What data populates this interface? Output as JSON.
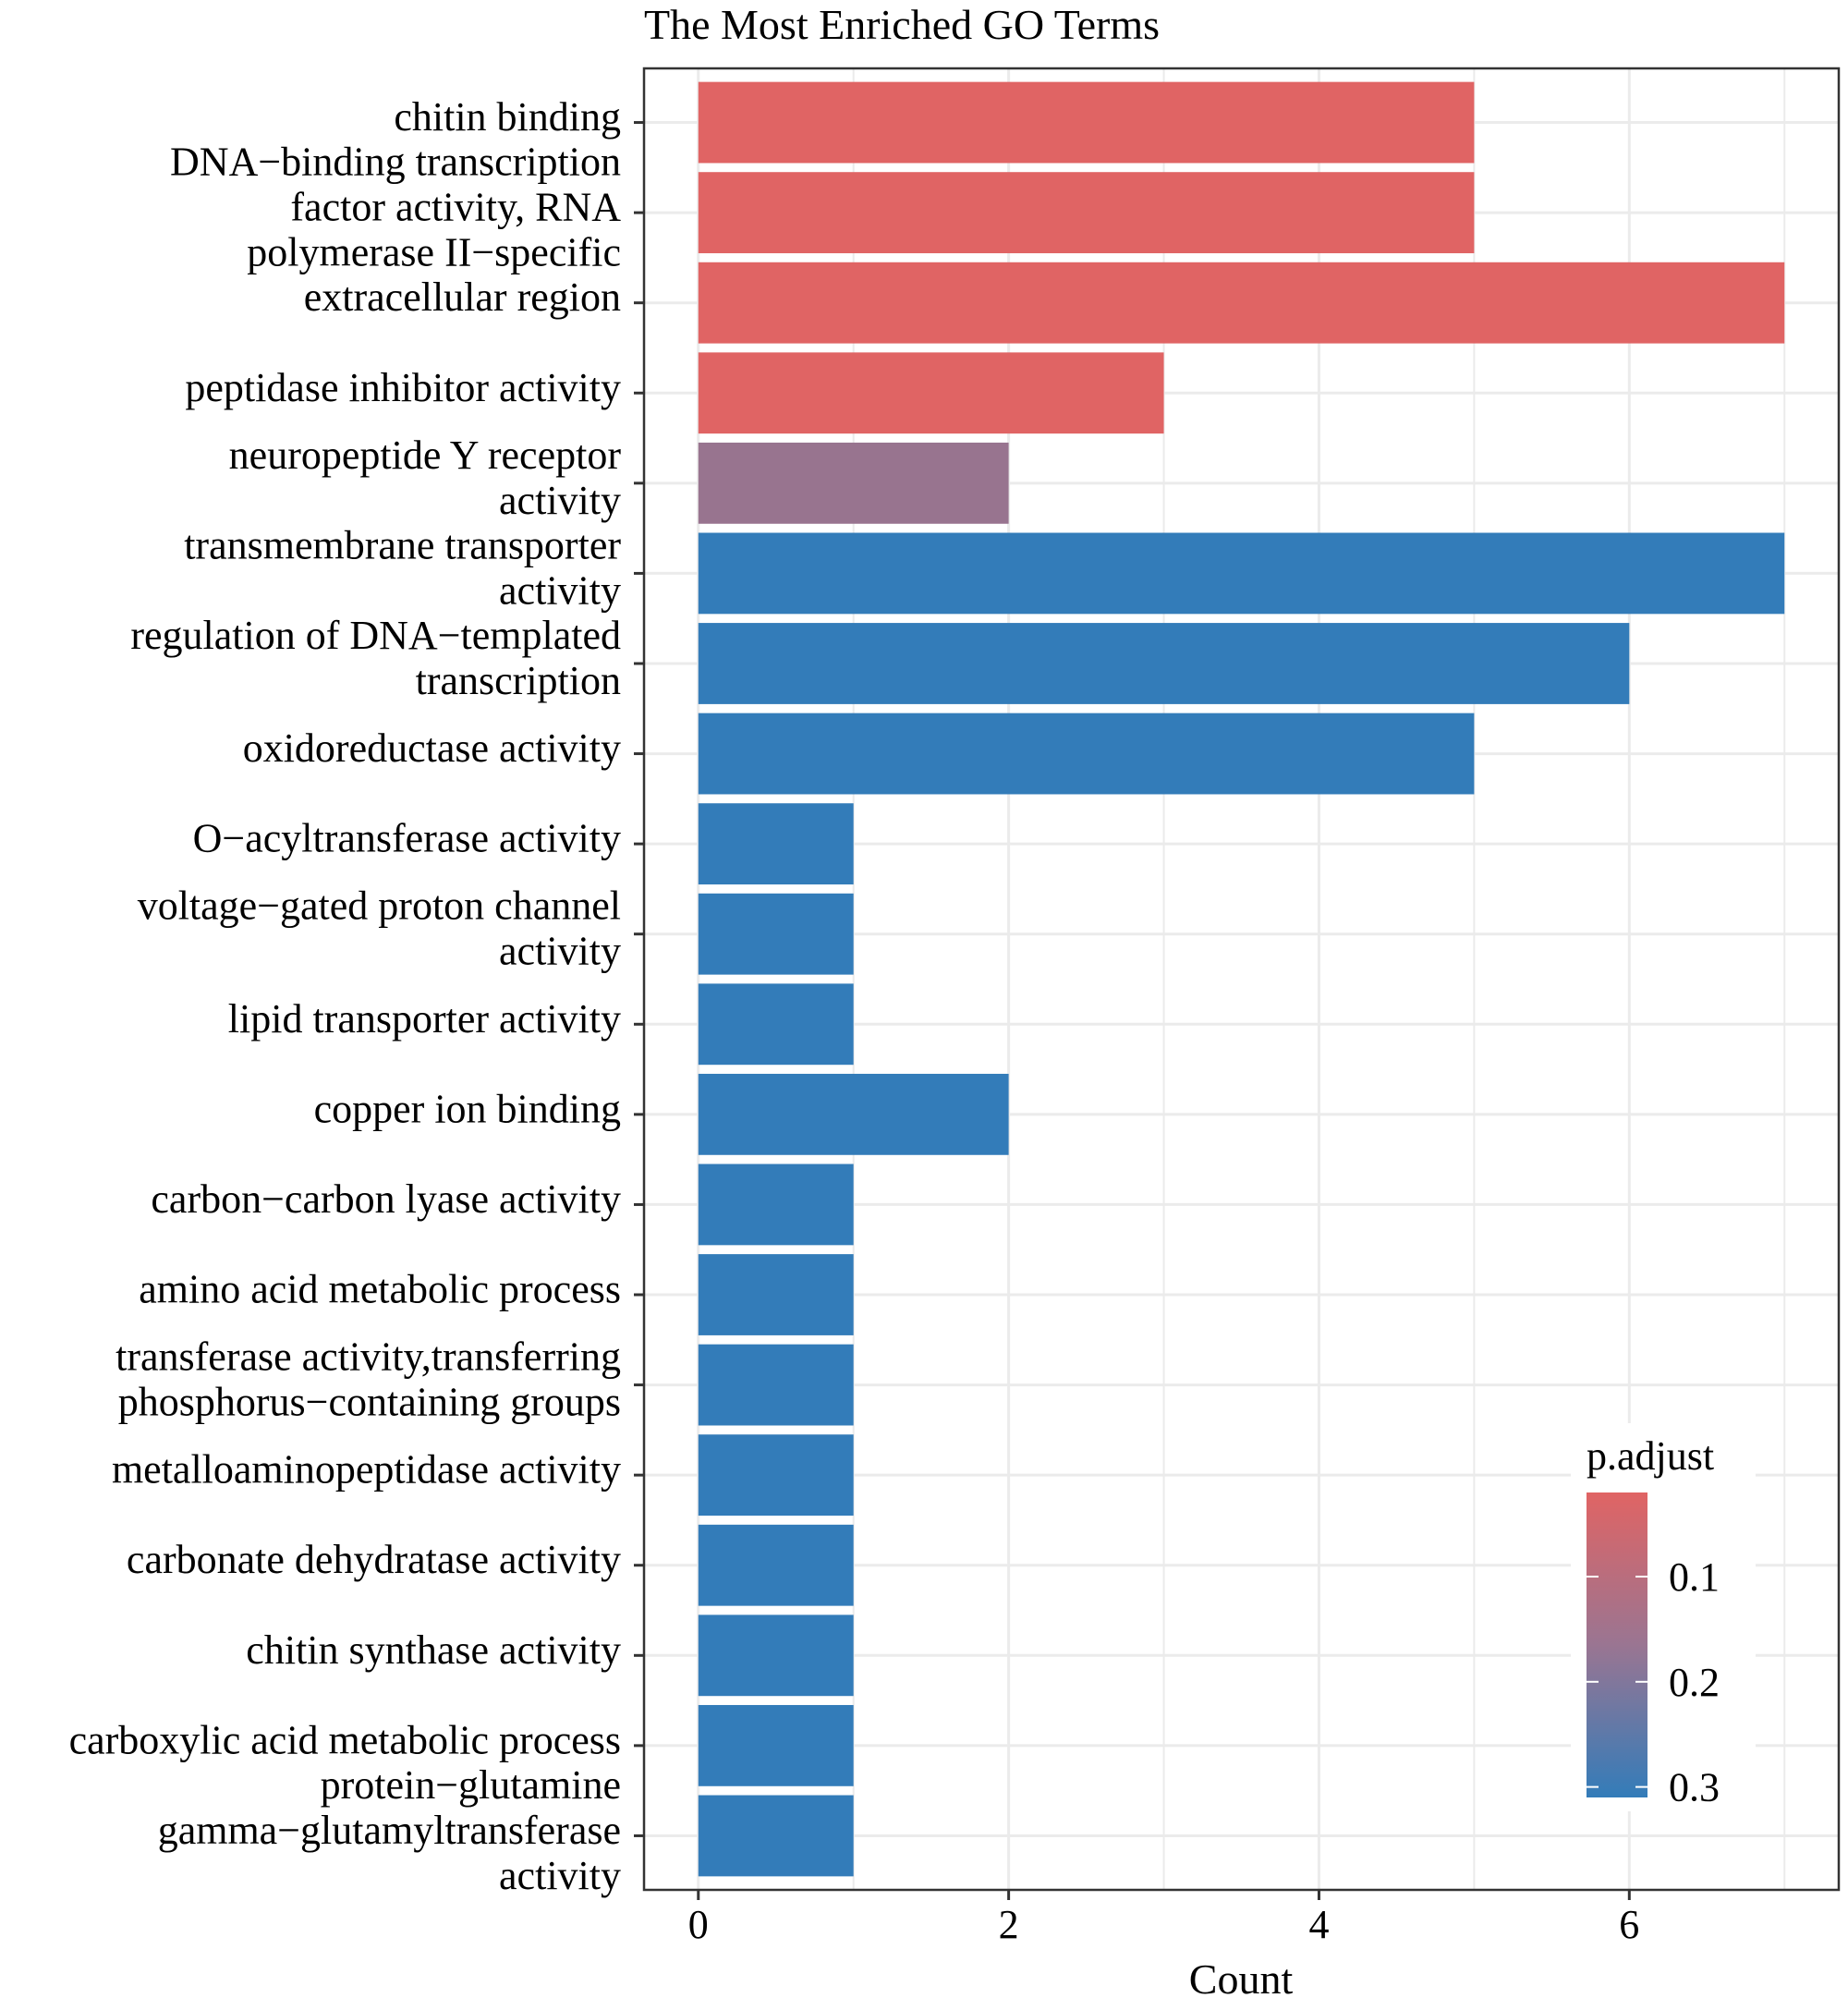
{
  "chart_data": {
    "type": "bar",
    "orientation": "horizontal",
    "title": "The Most Enriched GO Terms",
    "xlabel": "Count",
    "ylabel": "",
    "xlim": [
      -0.35,
      7.35
    ],
    "xticks": [
      0,
      2,
      4,
      6
    ],
    "xtick_labels": [
      "0",
      "2",
      "4",
      "6"
    ],
    "minor_gridlines_x": [
      1,
      3,
      5,
      7
    ],
    "grid": true,
    "categories": [
      {
        "label_lines": [
          "chitin binding"
        ],
        "value": 5,
        "p_adjust_level": "low",
        "color": "#E06464"
      },
      {
        "label_lines": [
          "DNA−binding transcription",
          "factor activity, RNA",
          "polymerase II−specific"
        ],
        "value": 5,
        "p_adjust_level": "low",
        "color": "#E06464"
      },
      {
        "label_lines": [
          "extracellular region"
        ],
        "value": 7,
        "p_adjust_level": "low",
        "color": "#E06464"
      },
      {
        "label_lines": [
          "peptidase inhibitor activity"
        ],
        "value": 3,
        "p_adjust_level": "low",
        "color": "#E06464"
      },
      {
        "label_lines": [
          "neuropeptide Y receptor",
          "activity"
        ],
        "value": 2,
        "p_adjust_level": "mid",
        "color": "#98748F"
      },
      {
        "label_lines": [
          "transmembrane transporter",
          "activity"
        ],
        "value": 7,
        "p_adjust_level": "high",
        "color": "#337CB9"
      },
      {
        "label_lines": [
          "regulation of DNA−templated",
          "transcription"
        ],
        "value": 6,
        "p_adjust_level": "high",
        "color": "#337CB9"
      },
      {
        "label_lines": [
          "oxidoreductase activity"
        ],
        "value": 5,
        "p_adjust_level": "high",
        "color": "#337CB9"
      },
      {
        "label_lines": [
          "O−acyltransferase activity"
        ],
        "value": 1,
        "p_adjust_level": "high",
        "color": "#337CB9"
      },
      {
        "label_lines": [
          "voltage−gated proton channel",
          "activity"
        ],
        "value": 1,
        "p_adjust_level": "high",
        "color": "#337CB9"
      },
      {
        "label_lines": [
          "lipid transporter activity"
        ],
        "value": 1,
        "p_adjust_level": "high",
        "color": "#337CB9"
      },
      {
        "label_lines": [
          "copper ion binding"
        ],
        "value": 2,
        "p_adjust_level": "high",
        "color": "#337CB9"
      },
      {
        "label_lines": [
          "carbon−carbon lyase activity"
        ],
        "value": 1,
        "p_adjust_level": "high",
        "color": "#337CB9"
      },
      {
        "label_lines": [
          "amino acid metabolic process"
        ],
        "value": 1,
        "p_adjust_level": "high",
        "color": "#337CB9"
      },
      {
        "label_lines": [
          "transferase activity,transferring",
          "phosphorus−containing groups"
        ],
        "value": 1,
        "p_adjust_level": "high",
        "color": "#337CB9"
      },
      {
        "label_lines": [
          "metalloaminopeptidase activity"
        ],
        "value": 1,
        "p_adjust_level": "high",
        "color": "#337CB9"
      },
      {
        "label_lines": [
          "carbonate dehydratase activity"
        ],
        "value": 1,
        "p_adjust_level": "high",
        "color": "#337CB9"
      },
      {
        "label_lines": [
          "chitin synthase activity"
        ],
        "value": 1,
        "p_adjust_level": "high",
        "color": "#337CB9"
      },
      {
        "label_lines": [
          "carboxylic acid metabolic process"
        ],
        "value": 1,
        "p_adjust_level": "high",
        "color": "#337CB9"
      },
      {
        "label_lines": [
          "protein−glutamine",
          "gamma−glutamyltransferase",
          "activity"
        ],
        "value": 1,
        "p_adjust_level": "high",
        "color": "#337CB9"
      }
    ],
    "legend": {
      "title": "p.adjust",
      "position": "bottom-right-inside",
      "type": "gradient",
      "color_low_value": "#E06464",
      "color_high_value": "#337CB9",
      "range": [
        0.02,
        0.31
      ],
      "ticks": [
        0.1,
        0.2,
        0.3
      ],
      "tick_labels": [
        "0.1",
        "0.2",
        "0.3"
      ]
    },
    "colors": {
      "panel_border": "#333333",
      "grid": "#EBEBEB",
      "background": "#FFFFFF"
    }
  }
}
